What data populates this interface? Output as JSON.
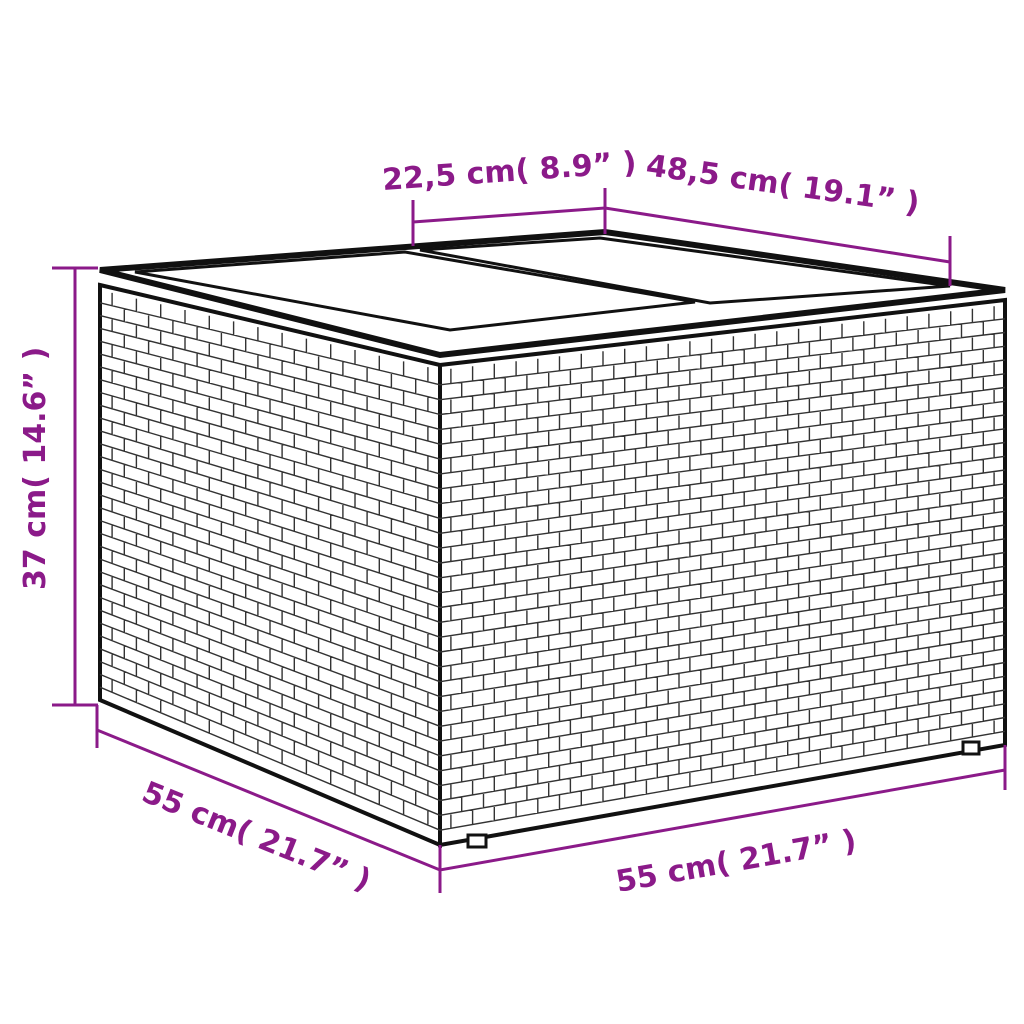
{
  "dimensions": {
    "top_short": "22,5 cm( 8.9” )",
    "top_long": "48,5 cm( 19.1” )",
    "height": "37 cm( 14.6” )",
    "depth": "55 cm( 21.7” )",
    "width": "55 cm( 21.7” )"
  },
  "colors": {
    "dimension": "#8b1a89",
    "outline": "#111111"
  }
}
